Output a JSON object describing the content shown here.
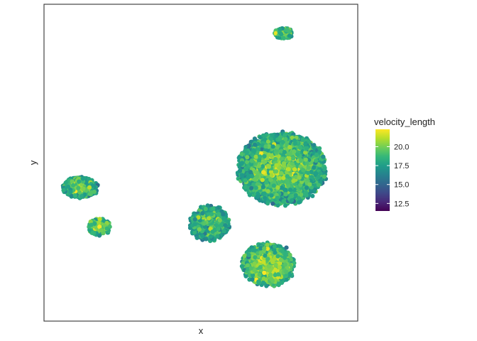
{
  "chart_data": {
    "type": "scatter",
    "xlabel": "x",
    "ylabel": "y",
    "x_ticks": [],
    "y_ticks": [],
    "grid": false,
    "color_variable": "velocity_length",
    "colormap": "viridis",
    "color_range": [
      11.5,
      22.3
    ],
    "legend": {
      "title": "velocity_length",
      "ticks": [
        12.5,
        15.0,
        17.5,
        20.0
      ],
      "tick_labels": [
        "12.5",
        "15.0",
        "17.5",
        "20.0"
      ],
      "placement": "right"
    },
    "clusters": [
      {
        "id": "top-small",
        "center": [
          4.1,
          9.3
        ],
        "spread": [
          0.45,
          0.3
        ],
        "mean_color": 20.2,
        "density": 1.0
      },
      {
        "id": "large-center",
        "center": [
          4.0,
          1.4
        ],
        "spread": [
          2.2,
          2.0
        ],
        "mean_color": 20.0,
        "density": 1.0
      },
      {
        "id": "bottom-lobe",
        "center": [
          3.3,
          -4.2
        ],
        "spread": [
          1.3,
          1.2
        ],
        "mean_color": 20.6,
        "density": 1.0
      },
      {
        "id": "left-arm",
        "center": [
          -6.6,
          0.3
        ],
        "spread": [
          0.9,
          0.6
        ],
        "mean_color": 20.0,
        "density": 0.8
      },
      {
        "id": "left-lower",
        "center": [
          -5.6,
          -2.0
        ],
        "spread": [
          0.55,
          0.5
        ],
        "mean_color": 20.5,
        "density": 0.6
      },
      {
        "id": "mid-bridge",
        "center": [
          0.2,
          -1.8
        ],
        "spread": [
          1.0,
          1.0
        ],
        "mean_color": 19.4,
        "density": 0.8
      }
    ],
    "x_range": [
      -8.5,
      8.0
    ],
    "y_range": [
      -7.5,
      11.0
    ]
  },
  "colors": {
    "panel_border": "#333333",
    "background": "#ffffff",
    "text": "#222222",
    "viridis": [
      "#440154",
      "#482878",
      "#3e4989",
      "#31688e",
      "#26828e",
      "#1f9e89",
      "#35b779",
      "#6ece58",
      "#b5de2b",
      "#fde725"
    ]
  }
}
